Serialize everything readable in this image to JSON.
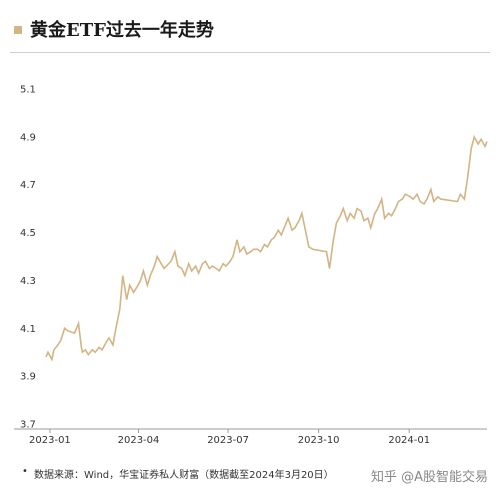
{
  "title": "黄金ETF过去一年走势",
  "footer": {
    "bullet": "•",
    "source": "数据来源：Wind，华宝证券私人财富（数据截至2024年3月20日）",
    "watermark": "知乎 @A股智能交易"
  },
  "colors": {
    "accent": "#D4B483",
    "line": "#D4B483",
    "axis": "#999999"
  },
  "chart_data": {
    "type": "line",
    "title": "黄金ETF过去一年走势",
    "xlabel": "",
    "ylabel": "",
    "ylim": [
      3.7,
      5.1
    ],
    "y_ticks": [
      3.7,
      3.9,
      4.1,
      4.3,
      4.5,
      4.7,
      4.9,
      5.1
    ],
    "y_tick_labels": [
      "3.7",
      "3.9",
      "4.1",
      "4.3",
      "4.5",
      "4.7",
      "4.9",
      "5.1"
    ],
    "x_tick_labels": [
      "2023-01",
      "2023-04",
      "2023-07",
      "2023-10",
      "2024-01"
    ],
    "x_tick_dates": [
      "2023-01-01",
      "2023-04-01",
      "2023-07-01",
      "2023-10-01",
      "2024-01-01"
    ],
    "x_range": [
      "2022-12-27",
      "2024-03-20"
    ],
    "grid": false,
    "series": [
      {
        "x": [
          "2022-12-28",
          "2022-12-30",
          "2023-01-03",
          "2023-01-05",
          "2023-01-09",
          "2023-01-12",
          "2023-01-16",
          "2023-01-19",
          "2023-01-26",
          "2023-01-30",
          "2023-02-02",
          "2023-02-03",
          "2023-02-06",
          "2023-02-09",
          "2023-02-13",
          "2023-02-16",
          "2023-02-20",
          "2023-02-23",
          "2023-02-27",
          "2023-03-02",
          "2023-03-06",
          "2023-03-09",
          "2023-03-13",
          "2023-03-16",
          "2023-03-20",
          "2023-03-23",
          "2023-03-27",
          "2023-03-30",
          "2023-04-03",
          "2023-04-06",
          "2023-04-10",
          "2023-04-13",
          "2023-04-17",
          "2023-04-20",
          "2023-04-24",
          "2023-04-27",
          "2023-05-04",
          "2023-05-08",
          "2023-05-11",
          "2023-05-15",
          "2023-05-18",
          "2023-05-22",
          "2023-05-25",
          "2023-05-29",
          "2023-06-01",
          "2023-06-05",
          "2023-06-08",
          "2023-06-12",
          "2023-06-15",
          "2023-06-19",
          "2023-06-22",
          "2023-06-26",
          "2023-06-29",
          "2023-07-03",
          "2023-07-06",
          "2023-07-10",
          "2023-07-13",
          "2023-07-17",
          "2023-07-20",
          "2023-07-24",
          "2023-07-27",
          "2023-07-31",
          "2023-08-03",
          "2023-08-07",
          "2023-08-10",
          "2023-08-14",
          "2023-08-17",
          "2023-08-21",
          "2023-08-24",
          "2023-08-28",
          "2023-08-31",
          "2023-09-04",
          "2023-09-07",
          "2023-09-11",
          "2023-09-14",
          "2023-09-18",
          "2023-09-21",
          "2023-09-25",
          "2023-10-09",
          "2023-10-12",
          "2023-10-16",
          "2023-10-19",
          "2023-10-23",
          "2023-10-26",
          "2023-10-30",
          "2023-11-02",
          "2023-11-06",
          "2023-11-09",
          "2023-11-13",
          "2023-11-16",
          "2023-11-20",
          "2023-11-23",
          "2023-11-27",
          "2023-11-30",
          "2023-12-04",
          "2023-12-07",
          "2023-12-11",
          "2023-12-14",
          "2023-12-18",
          "2023-12-21",
          "2023-12-25",
          "2023-12-28",
          "2024-01-02",
          "2024-01-05",
          "2024-01-09",
          "2024-01-12",
          "2024-01-16",
          "2024-01-19",
          "2024-01-23",
          "2024-01-26",
          "2024-01-30",
          "2024-02-02",
          "2024-02-19",
          "2024-02-22",
          "2024-02-26",
          "2024-02-29",
          "2024-03-04",
          "2024-03-07",
          "2024-03-11",
          "2024-03-14",
          "2024-03-18",
          "2024-03-20"
        ],
        "y": [
          3.98,
          4.0,
          3.97,
          4.01,
          4.03,
          4.05,
          4.1,
          4.09,
          4.08,
          4.12,
          4.02,
          4.0,
          4.01,
          3.99,
          4.01,
          4.0,
          4.02,
          4.01,
          4.04,
          4.06,
          4.03,
          4.1,
          4.18,
          4.32,
          4.22,
          4.28,
          4.25,
          4.27,
          4.3,
          4.34,
          4.28,
          4.32,
          4.36,
          4.4,
          4.37,
          4.35,
          4.38,
          4.42,
          4.36,
          4.35,
          4.32,
          4.37,
          4.34,
          4.36,
          4.33,
          4.37,
          4.38,
          4.35,
          4.36,
          4.35,
          4.34,
          4.37,
          4.36,
          4.38,
          4.4,
          4.47,
          4.42,
          4.44,
          4.41,
          4.42,
          4.43,
          4.43,
          4.42,
          4.45,
          4.44,
          4.47,
          4.48,
          4.51,
          4.49,
          4.53,
          4.56,
          4.51,
          4.52,
          4.55,
          4.58,
          4.5,
          4.44,
          4.43,
          4.42,
          4.35,
          4.47,
          4.54,
          4.57,
          4.6,
          4.55,
          4.58,
          4.56,
          4.6,
          4.59,
          4.55,
          4.56,
          4.52,
          4.58,
          4.6,
          4.64,
          4.56,
          4.58,
          4.57,
          4.6,
          4.63,
          4.64,
          4.66,
          4.65,
          4.64,
          4.66,
          4.63,
          4.62,
          4.64,
          4.68,
          4.63,
          4.65,
          4.64,
          4.63,
          4.66,
          4.64,
          4.72,
          4.85,
          4.9,
          4.87,
          4.89,
          4.86,
          4.88
        ]
      }
    ]
  }
}
